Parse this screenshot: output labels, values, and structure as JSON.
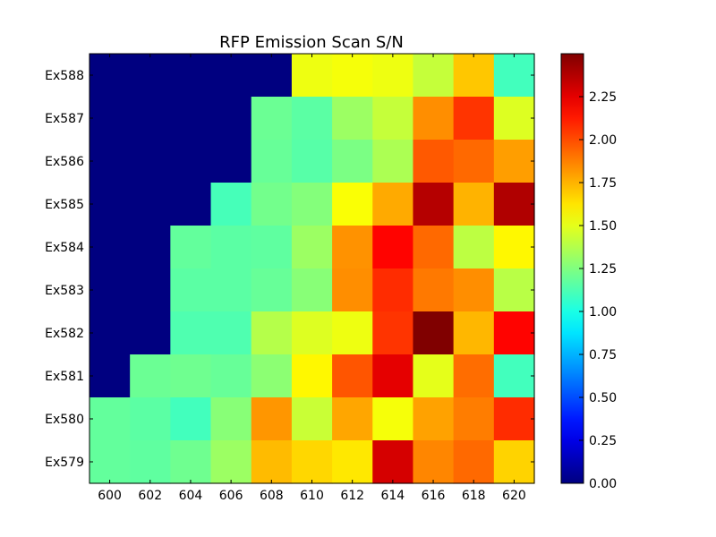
{
  "chart_data": {
    "type": "heatmap",
    "title": "RFP Emission Scan S/N",
    "x_categories": [
      "600",
      "602",
      "604",
      "606",
      "608",
      "610",
      "612",
      "614",
      "616",
      "618",
      "620"
    ],
    "y_categories": [
      "Ex588",
      "Ex587",
      "Ex586",
      "Ex585",
      "Ex584",
      "Ex583",
      "Ex582",
      "Ex581",
      "Ex580",
      "Ex579"
    ],
    "values": [
      [
        0,
        0,
        0,
        0,
        0,
        1.52,
        1.54,
        1.52,
        1.42,
        1.7,
        1.1
      ],
      [
        0,
        0,
        0,
        0,
        1.2,
        1.16,
        1.32,
        1.42,
        1.84,
        2.06,
        1.48
      ],
      [
        0,
        0,
        0,
        0,
        1.19,
        1.15,
        1.24,
        1.36,
        1.97,
        1.93,
        1.8
      ],
      [
        0,
        0,
        0,
        1.11,
        1.22,
        1.26,
        1.55,
        1.77,
        2.37,
        1.75,
        2.38
      ],
      [
        0,
        0,
        1.18,
        1.16,
        1.17,
        1.32,
        1.83,
        2.18,
        1.93,
        1.4,
        1.58
      ],
      [
        0,
        0,
        1.16,
        1.16,
        1.19,
        1.27,
        1.84,
        2.08,
        1.89,
        1.84,
        1.39
      ],
      [
        0,
        0,
        1.13,
        1.13,
        1.38,
        1.48,
        1.52,
        2.06,
        2.5,
        1.74,
        2.18
      ],
      [
        0,
        1.2,
        1.21,
        1.19,
        1.28,
        1.58,
        1.98,
        2.25,
        1.5,
        1.92,
        1.1
      ],
      [
        1.18,
        1.16,
        1.1,
        1.27,
        1.82,
        1.43,
        1.78,
        1.54,
        1.79,
        1.88,
        2.08
      ],
      [
        1.18,
        1.17,
        1.21,
        1.32,
        1.73,
        1.66,
        1.62,
        2.29,
        1.86,
        1.93,
        1.67
      ]
    ],
    "colormap": "jet",
    "vmin": 0,
    "vmax": 2.5,
    "colorbar_ticks": [
      "0.00",
      "0.25",
      "0.50",
      "0.75",
      "1.00",
      "1.25",
      "1.50",
      "1.75",
      "2.00",
      "2.25"
    ],
    "grid": false,
    "legend": "colorbar-right"
  }
}
